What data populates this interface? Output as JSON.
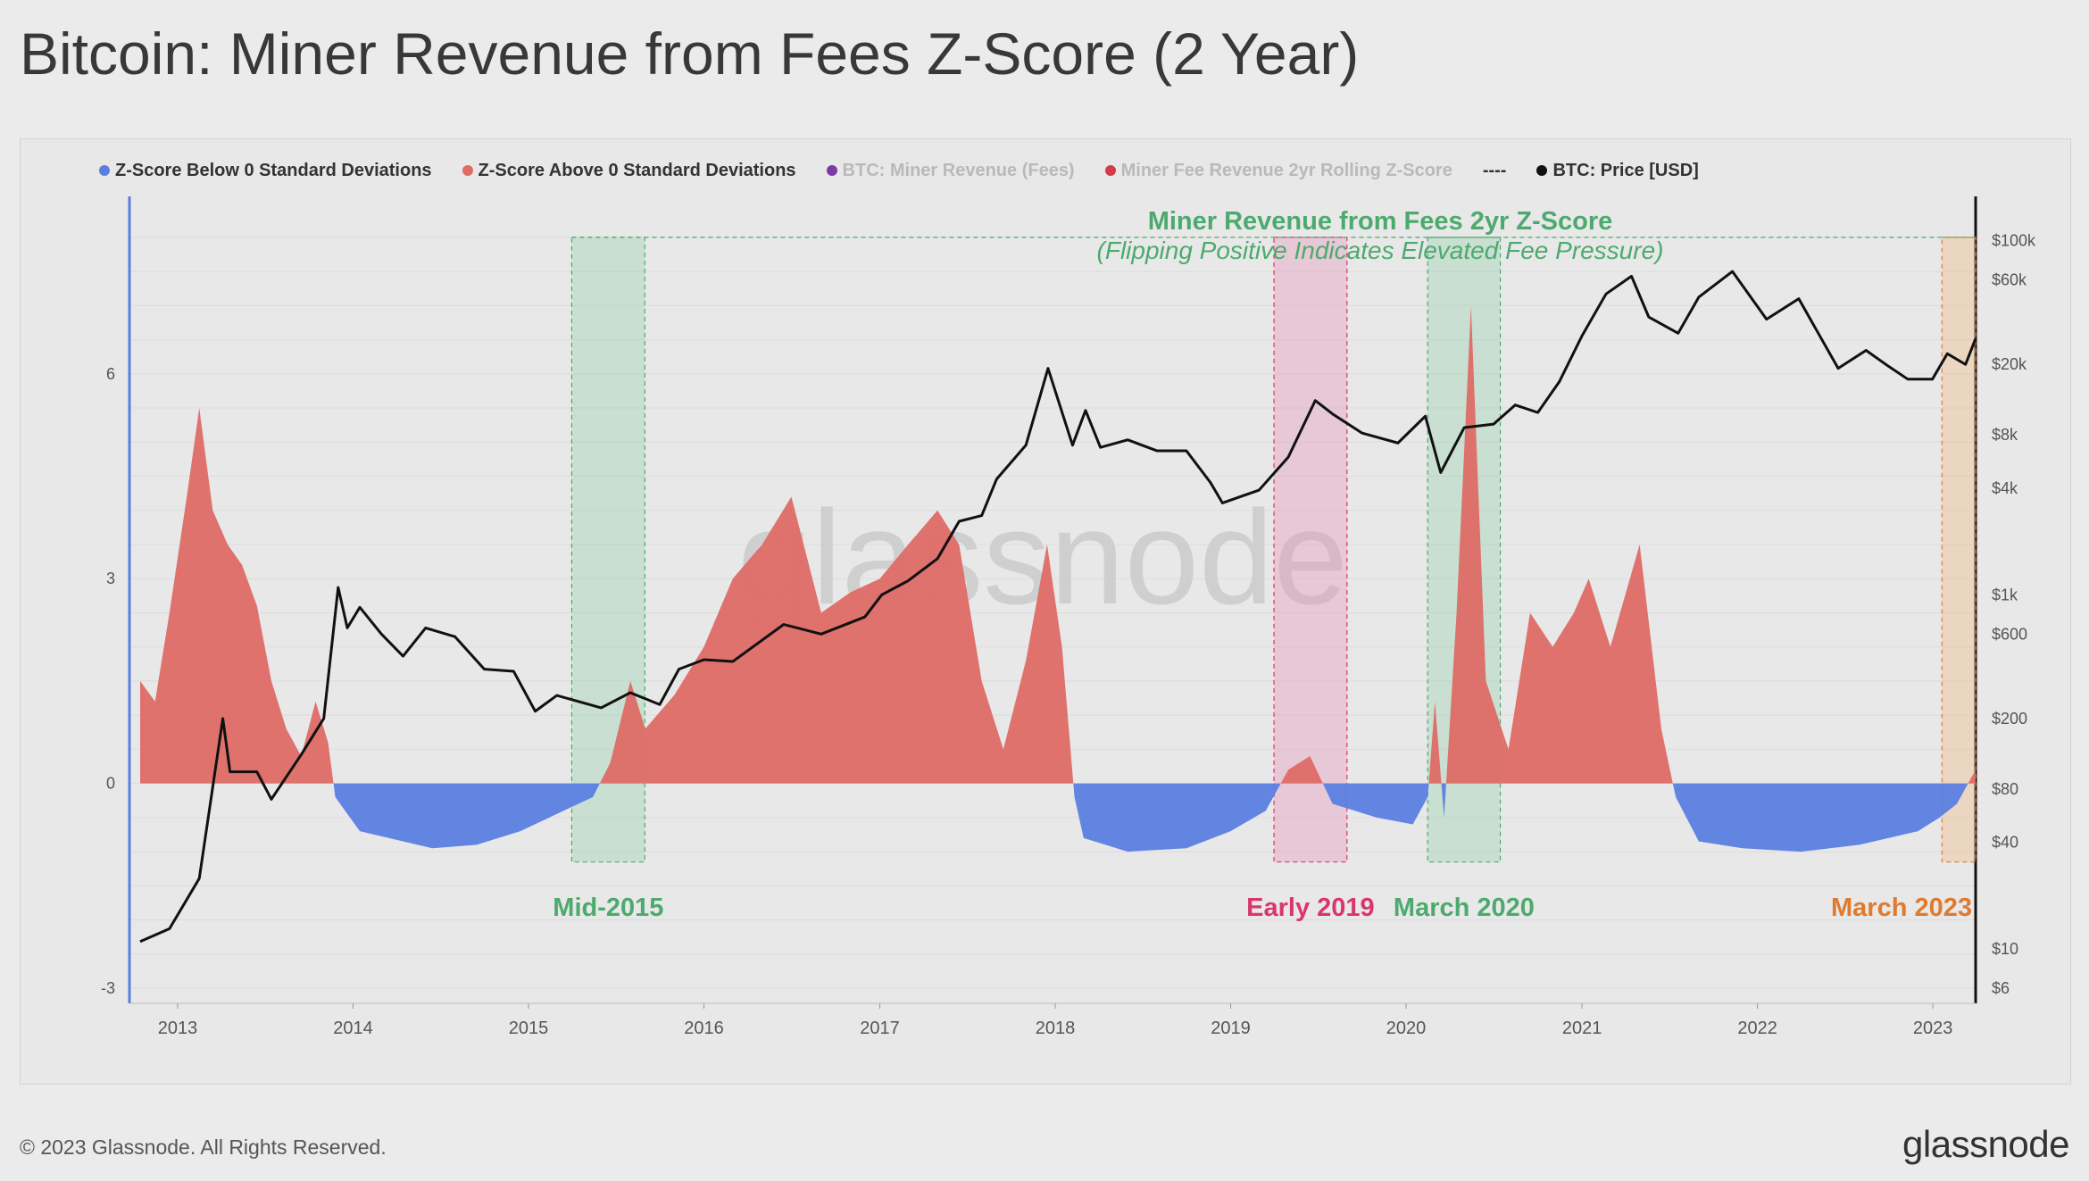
{
  "page": {
    "title": "Bitcoin: Miner Revenue from Fees Z-Score (2 Year)",
    "copyright": "© 2023 Glassnode. All Rights Reserved.",
    "brand": "glassnode",
    "watermark": "glassnode"
  },
  "colors": {
    "below": "#5b7fe0",
    "above": "#de6b66",
    "price": "#111111",
    "green": "#4daa6e",
    "pink": "#d9376b",
    "orange": "#e07a2e",
    "purple": "#7b3aa8",
    "red": "#d43a4a"
  },
  "legend": [
    {
      "label": "Z-Score Below 0 Standard Deviations",
      "color": "#5b7fe0",
      "state": "active"
    },
    {
      "label": "Z-Score Above 0 Standard Deviations",
      "color": "#de6b66",
      "state": "active"
    },
    {
      "label": "BTC: Miner Revenue (Fees)",
      "color": "#7b3aa8",
      "state": "hidden"
    },
    {
      "label": "Miner Fee Revenue 2yr Rolling Z-Score",
      "color": "#d43a4a",
      "state": "hidden"
    },
    {
      "label": "----",
      "color": "",
      "state": "dash"
    },
    {
      "label": "BTC: Price [USD]",
      "color": "#111111",
      "state": "active"
    }
  ],
  "chart_data": {
    "type": "area",
    "title": "Miner Revenue from Fees 2yr Z-Score",
    "subtitle": "(Flipping Positive Indicates Elevated Fee Pressure)",
    "x_range": [
      "2012-10-15",
      "2023-03-31"
    ],
    "x_ticks": [
      "2013",
      "2014",
      "2015",
      "2016",
      "2017",
      "2018",
      "2019",
      "2020",
      "2021",
      "2022",
      "2023"
    ],
    "y_left": {
      "ticks": [
        "-3",
        "0",
        "3",
        "6"
      ],
      "range": [
        -3,
        8.6
      ]
    },
    "y_right": {
      "scale": "log",
      "ticks": [
        "$6",
        "$10",
        "$40",
        "$80",
        "$200",
        "$600",
        "$1k",
        "$4k",
        "$8k",
        "$20k",
        "$60k",
        "$100k"
      ],
      "range": [
        6,
        130000
      ]
    },
    "grid": true,
    "legend_position": "top-left",
    "series": [
      {
        "name": "Z-Score Above 0 Standard Deviations / Z-Score Below 0 Standard Deviations",
        "axis": "left",
        "points": [
          [
            "2012-10-15",
            1.5
          ],
          [
            "2012-11-15",
            1.2
          ],
          [
            "2012-12-15",
            2.5
          ],
          [
            "2013-01-20",
            4.2
          ],
          [
            "2013-02-15",
            5.5
          ],
          [
            "2013-03-15",
            4.0
          ],
          [
            "2013-04-15",
            3.5
          ],
          [
            "2013-05-15",
            3.2
          ],
          [
            "2013-06-15",
            2.6
          ],
          [
            "2013-07-15",
            1.5
          ],
          [
            "2013-08-15",
            0.8
          ],
          [
            "2013-09-15",
            0.4
          ],
          [
            "2013-10-15",
            1.2
          ],
          [
            "2013-11-10",
            0.6
          ],
          [
            "2013-11-25",
            -0.2
          ],
          [
            "2014-01-15",
            -0.7
          ],
          [
            "2014-06-15",
            -0.95
          ],
          [
            "2014-09-15",
            -0.9
          ],
          [
            "2014-12-15",
            -0.7
          ],
          [
            "2015-03-15",
            -0.4
          ],
          [
            "2015-05-15",
            -0.2
          ],
          [
            "2015-06-20",
            0.3
          ],
          [
            "2015-08-01",
            1.5
          ],
          [
            "2015-09-01",
            0.8
          ],
          [
            "2015-11-01",
            1.3
          ],
          [
            "2016-01-01",
            2.0
          ],
          [
            "2016-03-01",
            3.0
          ],
          [
            "2016-05-01",
            3.5
          ],
          [
            "2016-07-01",
            4.2
          ],
          [
            "2016-09-01",
            2.5
          ],
          [
            "2016-11-01",
            2.8
          ],
          [
            "2017-01-01",
            3.0
          ],
          [
            "2017-03-01",
            3.5
          ],
          [
            "2017-05-01",
            4.0
          ],
          [
            "2017-06-15",
            3.5
          ],
          [
            "2017-08-01",
            1.5
          ],
          [
            "2017-09-15",
            0.5
          ],
          [
            "2017-11-01",
            1.8
          ],
          [
            "2017-12-15",
            3.5
          ],
          [
            "2018-01-15",
            2.0
          ],
          [
            "2018-02-10",
            -0.2
          ],
          [
            "2018-03-01",
            -0.8
          ],
          [
            "2018-06-01",
            -1.0
          ],
          [
            "2018-10-01",
            -0.95
          ],
          [
            "2019-01-01",
            -0.7
          ],
          [
            "2019-03-15",
            -0.4
          ],
          [
            "2019-05-01",
            0.2
          ],
          [
            "2019-06-15",
            0.4
          ],
          [
            "2019-08-01",
            -0.3
          ],
          [
            "2019-11-01",
            -0.5
          ],
          [
            "2020-01-15",
            -0.6
          ],
          [
            "2020-02-15",
            -0.2
          ],
          [
            "2020-03-01",
            1.2
          ],
          [
            "2020-03-20",
            -0.5
          ],
          [
            "2020-04-15",
            2.5
          ],
          [
            "2020-05-15",
            7.0
          ],
          [
            "2020-06-15",
            1.5
          ],
          [
            "2020-08-01",
            0.5
          ],
          [
            "2020-09-15",
            2.5
          ],
          [
            "2020-11-01",
            2.0
          ],
          [
            "2020-12-15",
            2.5
          ],
          [
            "2021-01-15",
            3.0
          ],
          [
            "2021-03-01",
            2.0
          ],
          [
            "2021-05-01",
            3.5
          ],
          [
            "2021-06-15",
            0.8
          ],
          [
            "2021-07-15",
            -0.2
          ],
          [
            "2021-09-01",
            -0.85
          ],
          [
            "2021-12-01",
            -0.95
          ],
          [
            "2022-04-01",
            -1.0
          ],
          [
            "2022-08-01",
            -0.9
          ],
          [
            "2022-12-01",
            -0.7
          ],
          [
            "2023-01-15",
            -0.5
          ],
          [
            "2023-02-20",
            -0.3
          ],
          [
            "2023-03-31",
            0.2
          ]
        ]
      },
      {
        "name": "BTC: Price [USD]",
        "axis": "right",
        "points": [
          [
            "2012-10-15",
            11
          ],
          [
            "2012-12-15",
            13
          ],
          [
            "2013-02-15",
            25
          ],
          [
            "2013-04-05",
            200
          ],
          [
            "2013-04-20",
            100
          ],
          [
            "2013-06-15",
            100
          ],
          [
            "2013-07-15",
            70
          ],
          [
            "2013-09-15",
            125
          ],
          [
            "2013-11-01",
            200
          ],
          [
            "2013-12-01",
            1100
          ],
          [
            "2013-12-20",
            650
          ],
          [
            "2014-01-15",
            850
          ],
          [
            "2014-03-01",
            600
          ],
          [
            "2014-04-15",
            450
          ],
          [
            "2014-06-01",
            650
          ],
          [
            "2014-08-01",
            580
          ],
          [
            "2014-10-01",
            380
          ],
          [
            "2014-12-01",
            370
          ],
          [
            "2015-01-15",
            220
          ],
          [
            "2015-03-01",
            270
          ],
          [
            "2015-06-01",
            230
          ],
          [
            "2015-08-01",
            280
          ],
          [
            "2015-10-01",
            240
          ],
          [
            "2015-11-10",
            380
          ],
          [
            "2016-01-01",
            430
          ],
          [
            "2016-03-01",
            420
          ],
          [
            "2016-06-15",
            680
          ],
          [
            "2016-09-01",
            600
          ],
          [
            "2016-12-01",
            750
          ],
          [
            "2017-01-05",
            1000
          ],
          [
            "2017-03-01",
            1200
          ],
          [
            "2017-05-01",
            1600
          ],
          [
            "2017-06-15",
            2600
          ],
          [
            "2017-08-01",
            2800
          ],
          [
            "2017-09-01",
            4500
          ],
          [
            "2017-11-01",
            7000
          ],
          [
            "2017-12-17",
            19000
          ],
          [
            "2018-02-06",
            7000
          ],
          [
            "2018-03-05",
            11000
          ],
          [
            "2018-04-05",
            6800
          ],
          [
            "2018-06-01",
            7500
          ],
          [
            "2018-08-01",
            6500
          ],
          [
            "2018-10-01",
            6500
          ],
          [
            "2018-11-20",
            4300
          ],
          [
            "2018-12-15",
            3300
          ],
          [
            "2019-03-01",
            3900
          ],
          [
            "2019-05-01",
            6000
          ],
          [
            "2019-06-26",
            12500
          ],
          [
            "2019-08-01",
            10500
          ],
          [
            "2019-10-01",
            8200
          ],
          [
            "2019-12-15",
            7200
          ],
          [
            "2020-02-10",
            10200
          ],
          [
            "2020-03-13",
            4900
          ],
          [
            "2020-05-01",
            8800
          ],
          [
            "2020-07-01",
            9200
          ],
          [
            "2020-08-15",
            11800
          ],
          [
            "2020-10-01",
            10700
          ],
          [
            "2020-11-15",
            16000
          ],
          [
            "2021-01-01",
            29000
          ],
          [
            "2021-02-20",
            50000
          ],
          [
            "2021-04-14",
            63000
          ],
          [
            "2021-05-20",
            37000
          ],
          [
            "2021-07-20",
            30000
          ],
          [
            "2021-09-01",
            48000
          ],
          [
            "2021-11-10",
            67000
          ],
          [
            "2022-01-20",
            36000
          ],
          [
            "2022-03-28",
            47000
          ],
          [
            "2022-06-18",
            19000
          ],
          [
            "2022-08-15",
            24000
          ],
          [
            "2022-10-01",
            19500
          ],
          [
            "2022-11-10",
            16500
          ],
          [
            "2022-12-31",
            16500
          ],
          [
            "2023-01-31",
            23000
          ],
          [
            "2023-03-10",
            20000
          ],
          [
            "2023-03-31",
            28000
          ]
        ]
      }
    ],
    "highlights": [
      {
        "label": "Mid-2015",
        "from": "2015-04-01",
        "to": "2015-08-31",
        "color": "green"
      },
      {
        "label": "Early 2019",
        "from": "2019-04-01",
        "to": "2019-08-31",
        "color": "pink"
      },
      {
        "label": "March 2020",
        "from": "2020-02-15",
        "to": "2020-07-15",
        "color": "green"
      },
      {
        "label": "March 2023",
        "from": "2023-01-20",
        "to": "2023-03-31",
        "color": "orange"
      }
    ]
  }
}
